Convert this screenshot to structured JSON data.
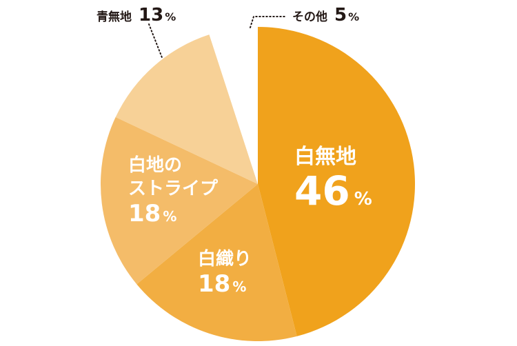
{
  "chart_data": {
    "type": "pie",
    "title": "",
    "start_angle_deg": 0,
    "direction": "clockwise",
    "slices": [
      {
        "label": "白無地",
        "value": 46,
        "value_text": "46",
        "unit": "%",
        "color": "#f0a21c"
      },
      {
        "label": "白織り",
        "value": 18,
        "value_text": "18",
        "unit": "%",
        "color": "#f2ae42"
      },
      {
        "label_lines": [
          "白地の",
          "ストライプ"
        ],
        "value": 18,
        "value_text": "18",
        "unit": "%",
        "color": "#f4bc69"
      },
      {
        "label": "青無地",
        "value": 13,
        "value_text": "13",
        "unit": "%",
        "color": "#f7d197"
      },
      {
        "label": "その他",
        "value": 5,
        "value_text": "5",
        "unit": "%",
        "color": "#ffffff"
      }
    ],
    "colors": {
      "label_on_slice": "#ffffff",
      "label_outside": "#231815",
      "leader_line": "#231815"
    }
  }
}
